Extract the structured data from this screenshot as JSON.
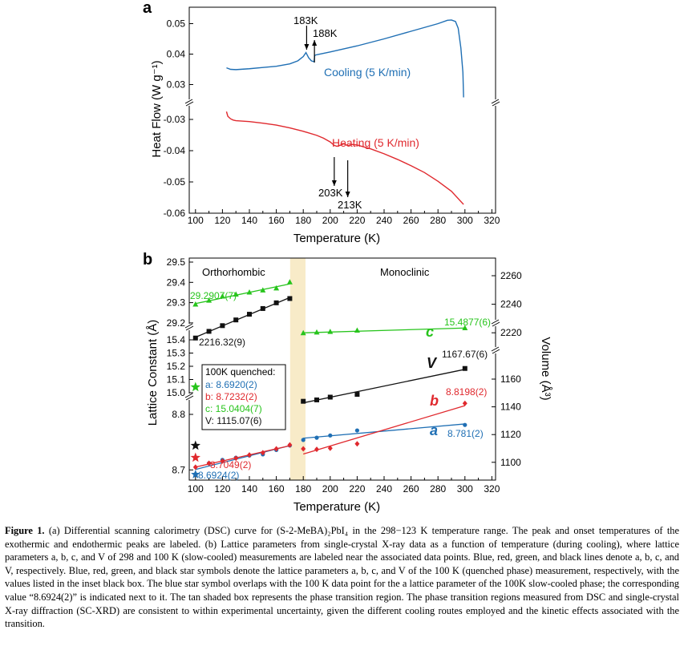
{
  "colors": {
    "blue": "#1f6fb4",
    "red": "#e0292e",
    "green": "#27c41c",
    "black": "#111111",
    "tan": "#f8ebc8"
  },
  "chart_data": [
    {
      "panel": "a",
      "type": "line",
      "xlabel": "Temperature (K)",
      "ylabel": "Heat Flow (W g⁻¹)",
      "xlim": [
        100,
        320
      ],
      "x_ticks": [
        "100",
        "120",
        "140",
        "160",
        "180",
        "200",
        "220",
        "240",
        "260",
        "280",
        "300",
        "320"
      ],
      "y_ticks_upper": [
        "0.05",
        "0.04",
        "0.03"
      ],
      "y_ticks_lower": [
        "-0.03",
        "-0.04",
        "-0.05",
        "-0.06"
      ],
      "series": [
        {
          "name": "Cooling (5 K/min)",
          "color": "#1f6fb4",
          "x": [
            123,
            126,
            130,
            140,
            150,
            160,
            170,
            176,
            180,
            182,
            184,
            186,
            188,
            188.5,
            190,
            200,
            220,
            240,
            260,
            280,
            287,
            290,
            293,
            295,
            297,
            298.5,
            299
          ],
          "y": [
            0.0355,
            0.035,
            0.0349,
            0.0352,
            0.0356,
            0.036,
            0.0368,
            0.0378,
            0.0392,
            0.0405,
            0.0388,
            0.0378,
            0.0375,
            0.0396,
            0.0398,
            0.0407,
            0.0427,
            0.045,
            0.0475,
            0.05,
            0.0511,
            0.0512,
            0.0507,
            0.0485,
            0.042,
            0.034,
            0.0258
          ]
        },
        {
          "name": "Heating (5 K/min)",
          "color": "#e0292e",
          "x": [
            123,
            124,
            126,
            128,
            130,
            140,
            150,
            160,
            170,
            180,
            190,
            195,
            200,
            203,
            205,
            208,
            210,
            213,
            216,
            220,
            230,
            240,
            250,
            260,
            270,
            280,
            290,
            299
          ],
          "y": [
            -0.0275,
            -0.029,
            -0.0298,
            -0.0302,
            -0.0304,
            -0.0307,
            -0.0312,
            -0.0318,
            -0.0327,
            -0.0338,
            -0.0351,
            -0.036,
            -0.0372,
            -0.0383,
            -0.0386,
            -0.0382,
            -0.0378,
            -0.0384,
            -0.038,
            -0.0382,
            -0.0394,
            -0.041,
            -0.0428,
            -0.0448,
            -0.047,
            -0.0498,
            -0.053,
            -0.0572
          ]
        }
      ],
      "annotations": [
        "183K",
        "188K",
        "203K",
        "213K"
      ]
    },
    {
      "panel": "b",
      "type": "scatter",
      "xlabel": "Temperature (K)",
      "ylabel_left": "Lattice Constant (Å)",
      "ylabel_right": "Volume (Å³)",
      "xlim": [
        100,
        320
      ],
      "x_ticks": [
        "100",
        "120",
        "140",
        "160",
        "180",
        "200",
        "220",
        "240",
        "260",
        "280",
        "300",
        "320"
      ],
      "y_left_ticks": [
        "29.5",
        "29.4",
        "29.3",
        "29.2",
        "15.4",
        "15.3",
        "15.2",
        "15.1",
        "15.0",
        "8.8",
        "8.7"
      ],
      "y_right_ticks": [
        "2260",
        "2240",
        "2220",
        "1160",
        "1140",
        "1120",
        "1100"
      ],
      "region_labels": [
        "Orthorhombic",
        "Monoclinic"
      ],
      "transition_region": [
        170,
        180
      ],
      "series": [
        {
          "name": "a",
          "color": "#1f6fb4",
          "points": [
            [
              100,
              8.6924
            ],
            [
              110,
              8.712
            ],
            [
              120,
              8.718
            ],
            [
              130,
              8.722
            ],
            [
              140,
              8.726
            ],
            [
              150,
              8.728
            ],
            [
              160,
              8.736
            ],
            [
              170,
              8.744
            ],
            [
              180,
              8.754
            ],
            [
              190,
              8.758
            ],
            [
              200,
              8.762
            ],
            [
              220,
              8.771
            ],
            [
              300,
              8.781
            ]
          ]
        },
        {
          "name": "b",
          "color": "#e0292e",
          "points": [
            [
              100,
              8.7049
            ],
            [
              110,
              8.712
            ],
            [
              120,
              8.716
            ],
            [
              130,
              8.721
            ],
            [
              140,
              8.727
            ],
            [
              150,
              8.731
            ],
            [
              160,
              8.738
            ],
            [
              170,
              8.745
            ],
            [
              180,
              8.738
            ],
            [
              190,
              8.737
            ],
            [
              200,
              8.739
            ],
            [
              220,
              8.747
            ],
            [
              300,
              8.8198
            ]
          ]
        },
        {
          "name": "c",
          "color": "#27c41c",
          "points": [
            [
              100,
              29.2907
            ],
            [
              110,
              29.31
            ],
            [
              120,
              29.33
            ],
            [
              130,
              29.34
            ],
            [
              140,
              29.35
            ],
            [
              150,
              29.36
            ],
            [
              160,
              29.37
            ],
            [
              170,
              29.4
            ],
            [
              180,
              15.45
            ],
            [
              190,
              15.455
            ],
            [
              200,
              15.46
            ],
            [
              220,
              15.47
            ],
            [
              300,
              15.4877
            ]
          ]
        },
        {
          "name": "V",
          "color": "#111111",
          "points": [
            [
              100,
              2216.32
            ],
            [
              110,
              2221
            ],
            [
              120,
              2225
            ],
            [
              130,
              2229
            ],
            [
              140,
              2233
            ],
            [
              150,
              2237
            ],
            [
              160,
              2241
            ],
            [
              170,
              2244
            ],
            [
              180,
              1144
            ],
            [
              190,
              1145
            ],
            [
              200,
              1147
            ],
            [
              220,
              1149
            ],
            [
              300,
              1167.67
            ]
          ]
        }
      ],
      "point_labels": [
        "29.2907(7)",
        "2216.32(9)",
        "15.4877(6)",
        "1167.67(6)",
        "8.8198(2)",
        "8.781(2)",
        "8.7049(2)",
        "8.6924(2)"
      ],
      "series_labels": [
        "a",
        "b",
        "c",
        "V"
      ],
      "inset": {
        "title": "100K quenched:",
        "lines": [
          {
            "text": "a: 8.6920(2)",
            "color": "#1f6fb4"
          },
          {
            "text": "b: 8.7232(2)",
            "color": "#e0292e"
          },
          {
            "text": "c: 15.0404(7)",
            "color": "#27c41c"
          },
          {
            "text": "V: 1115.07(6)",
            "color": "#111111"
          }
        ]
      }
    }
  ],
  "panel_labels": {
    "a": "a",
    "b": "b"
  },
  "caption": {
    "label": "Figure 1.",
    "text": " (a) Differential scanning calorimetry (DSC) curve for (S-2-MeBA)₂PbI₄ in the 298−123 K temperature range. The peak and onset temperatures of the exothermic and endothermic peaks are labeled. (b) Lattice parameters from single-crystal X-ray data as a function of temperature (during cooling), where lattice parameters a, b, c, and V of 298 and 100 K (slow-cooled) measurements are labeled near the associated data points. Blue, red, green, and black lines denote a, b, c, and V, respectively. Blue, red, green, and black star symbols denote the lattice parameters a, b, c, and V of the 100 K (quenched phase) measurement, respectively, with the values listed in the inset black box. The blue star symbol overlaps with the 100 K data point for the a lattice parameter of the 100K slow-cooled phase; the corresponding value “8.6924(2)” is indicated next to it. The tan shaded box represents the phase transition region. The phase transition regions measured from DSC and single-crystal X-ray diffraction (SC-XRD) are consistent to within experimental uncertainty, given the different cooling routes employed and the kinetic effects associated with the transition."
  }
}
